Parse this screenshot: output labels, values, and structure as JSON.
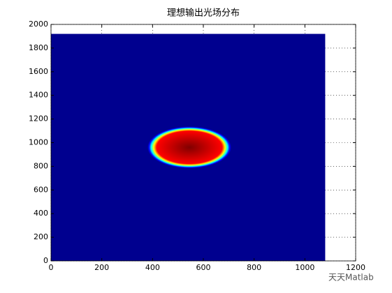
{
  "chart_data": {
    "type": "image",
    "title": "理想输出光场分布",
    "xlim": [
      0,
      1200
    ],
    "ylim": [
      0,
      2000
    ],
    "xticks": [
      0,
      200,
      400,
      600,
      800,
      1000,
      1200
    ],
    "yticks": [
      0,
      200,
      400,
      600,
      800,
      1000,
      1200,
      1400,
      1600,
      1800,
      2000
    ],
    "grid": true,
    "extent": {
      "x": [
        0,
        1080
      ],
      "y": [
        0,
        1920
      ]
    },
    "spot": {
      "cx": 545,
      "cy": 960,
      "rx": 165,
      "ry": 177
    },
    "colormap": [
      "#800000",
      "#ff0000",
      "#ffff00",
      "#00ffff",
      "#0000ff",
      "#00008f"
    ],
    "watermark": "天天Matlab"
  }
}
